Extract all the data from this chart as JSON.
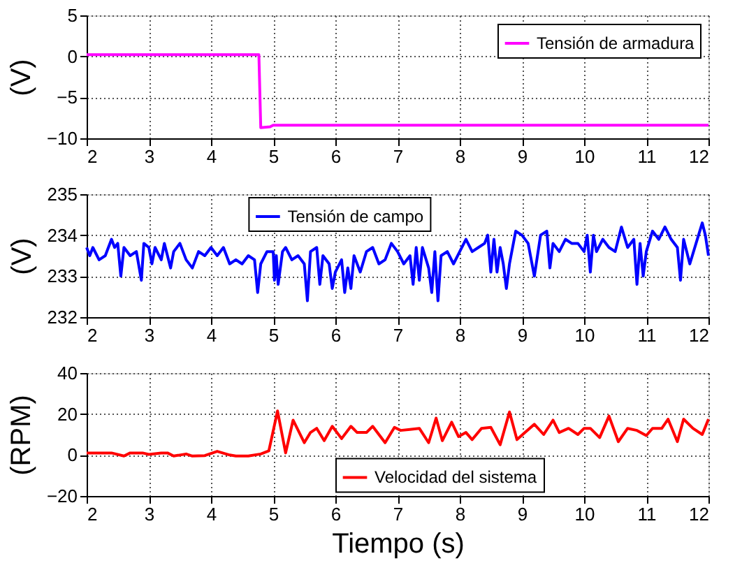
{
  "chart_data": [
    {
      "type": "line",
      "ylabel": "(V)",
      "xlim": [
        2,
        12
      ],
      "xticks": [
        2,
        3,
        4,
        5,
        6,
        7,
        8,
        9,
        10,
        11,
        12
      ],
      "ylim": [
        -10,
        5
      ],
      "yticks": [
        -10,
        -5,
        0,
        5
      ],
      "grid": true,
      "legend": "top right",
      "series": [
        {
          "name": "Tensión de armadura",
          "color": "#ff00ff",
          "x": [
            2,
            4.77,
            4.8,
            4.95,
            5.0,
            5.6,
            7.35,
            12
          ],
          "values": [
            0.2,
            0.2,
            -8.7,
            -8.6,
            -8.4,
            -8.4,
            -8.4,
            -8.4
          ]
        }
      ]
    },
    {
      "type": "line",
      "ylabel": "(V)",
      "xlim": [
        2,
        12
      ],
      "xticks": [
        2,
        3,
        4,
        5,
        6,
        7,
        8,
        9,
        10,
        11,
        12
      ],
      "ylim": [
        232,
        235
      ],
      "yticks": [
        232,
        233,
        234,
        235
      ],
      "grid": true,
      "legend": "top",
      "series": [
        {
          "name": "Tensión de campo",
          "color": "#0000ff",
          "x": [
            2.0,
            2.05,
            2.1,
            2.2,
            2.3,
            2.4,
            2.45,
            2.5,
            2.55,
            2.6,
            2.7,
            2.8,
            2.88,
            2.92,
            3.0,
            3.05,
            3.1,
            3.2,
            3.25,
            3.35,
            3.4,
            3.5,
            3.6,
            3.7,
            3.8,
            3.9,
            4.0,
            4.1,
            4.2,
            4.3,
            4.4,
            4.5,
            4.6,
            4.7,
            4.75,
            4.8,
            4.9,
            5.0,
            5.02,
            5.05,
            5.08,
            5.15,
            5.2,
            5.3,
            5.4,
            5.5,
            5.55,
            5.6,
            5.7,
            5.75,
            5.8,
            5.9,
            5.95,
            6.0,
            6.1,
            6.15,
            6.2,
            6.25,
            6.3,
            6.4,
            6.5,
            6.6,
            6.7,
            6.8,
            6.9,
            7.0,
            7.1,
            7.2,
            7.25,
            7.3,
            7.35,
            7.4,
            7.5,
            7.55,
            7.6,
            7.65,
            7.7,
            7.8,
            7.9,
            8.0,
            8.1,
            8.2,
            8.3,
            8.4,
            8.45,
            8.5,
            8.55,
            8.6,
            8.65,
            8.7,
            8.75,
            8.8,
            8.9,
            9.0,
            9.1,
            9.2,
            9.3,
            9.4,
            9.45,
            9.5,
            9.6,
            9.7,
            9.8,
            9.9,
            10.0,
            10.05,
            10.1,
            10.15,
            10.2,
            10.3,
            10.4,
            10.5,
            10.6,
            10.7,
            10.8,
            10.85,
            10.9,
            10.95,
            11.0,
            11.1,
            11.2,
            11.3,
            11.4,
            11.5,
            11.55,
            11.6,
            11.7,
            11.8,
            11.9,
            11.95,
            12.0
          ],
          "values": [
            233.7,
            233.5,
            233.7,
            233.4,
            233.5,
            233.9,
            233.7,
            233.8,
            233.0,
            233.7,
            233.5,
            233.6,
            232.9,
            233.8,
            233.7,
            233.3,
            233.7,
            233.4,
            233.8,
            233.2,
            233.6,
            233.8,
            233.4,
            233.2,
            233.6,
            233.5,
            233.7,
            233.5,
            233.7,
            233.3,
            233.4,
            233.3,
            233.5,
            233.4,
            232.6,
            233.3,
            233.6,
            233.6,
            232.9,
            233.5,
            232.8,
            233.6,
            233.7,
            233.4,
            233.5,
            233.3,
            232.4,
            233.6,
            233.7,
            232.8,
            233.5,
            233.3,
            232.7,
            233.1,
            233.4,
            232.6,
            233.2,
            232.7,
            233.5,
            233.1,
            233.6,
            233.7,
            233.3,
            233.4,
            233.8,
            233.6,
            233.3,
            233.5,
            232.8,
            233.7,
            232.9,
            233.7,
            233.2,
            232.6,
            233.6,
            232.4,
            233.5,
            233.6,
            233.3,
            233.6,
            233.9,
            233.6,
            233.7,
            233.8,
            234.0,
            233.1,
            233.9,
            233.1,
            233.7,
            233.3,
            232.7,
            233.3,
            234.1,
            234.0,
            233.8,
            233.0,
            234.0,
            234.1,
            233.2,
            233.8,
            233.6,
            233.9,
            233.8,
            233.8,
            233.6,
            234.0,
            233.1,
            234.0,
            233.6,
            233.9,
            233.7,
            233.6,
            234.2,
            233.7,
            233.9,
            232.8,
            233.8,
            233.0,
            233.6,
            234.1,
            233.9,
            234.2,
            233.9,
            233.7,
            232.9,
            233.9,
            233.3,
            233.8,
            234.3,
            234.0,
            233.5
          ]
        }
      ]
    },
    {
      "type": "line",
      "ylabel": "(RPM)",
      "xlabel": "Tiempo (s)",
      "xlim": [
        2,
        12
      ],
      "xticks": [
        2,
        3,
        4,
        5,
        6,
        7,
        8,
        9,
        10,
        11,
        12
      ],
      "ylim": [
        -20,
        40
      ],
      "yticks": [
        -20,
        0,
        20,
        40
      ],
      "grid": true,
      "legend": "bottom",
      "series": [
        {
          "name": "Velocidad del sistema",
          "color": "#ff0000",
          "x": [
            2,
            2.4,
            2.6,
            2.7,
            2.9,
            3.0,
            3.2,
            3.3,
            3.4,
            3.6,
            3.7,
            3.9,
            4.1,
            4.3,
            4.4,
            4.6,
            4.8,
            4.93,
            5.07,
            5.2,
            5.32,
            5.5,
            5.6,
            5.7,
            5.82,
            5.95,
            6.1,
            6.25,
            6.35,
            6.5,
            6.6,
            6.8,
            6.95,
            7.05,
            7.2,
            7.35,
            7.5,
            7.62,
            7.72,
            7.87,
            7.98,
            8.1,
            8.2,
            8.35,
            8.5,
            8.65,
            8.8,
            8.92,
            9.05,
            9.2,
            9.35,
            9.5,
            9.6,
            9.75,
            9.9,
            10.0,
            10.1,
            10.25,
            10.4,
            10.55,
            10.7,
            10.85,
            11.0,
            11.1,
            11.25,
            11.35,
            11.5,
            11.6,
            11.75,
            11.9,
            12.0
          ],
          "values": [
            1,
            1,
            -0.5,
            1,
            1,
            0.3,
            1,
            1,
            -0.5,
            0.5,
            -0.5,
            -0.3,
            1.8,
            0,
            -0.5,
            -0.5,
            0.5,
            2,
            21.5,
            1,
            17,
            6,
            11,
            13,
            7,
            14,
            8,
            14,
            11,
            11,
            14,
            6,
            13.5,
            12,
            12.5,
            13,
            6,
            18,
            7,
            16,
            9,
            11,
            7.5,
            13,
            13.5,
            5,
            21,
            7.5,
            11,
            15,
            10,
            17,
            11,
            13,
            10,
            13,
            13,
            8.5,
            19,
            6.5,
            13,
            12,
            9.5,
            13,
            13,
            17.5,
            6.5,
            17.5,
            13,
            10,
            17.5
          ]
        }
      ]
    }
  ]
}
